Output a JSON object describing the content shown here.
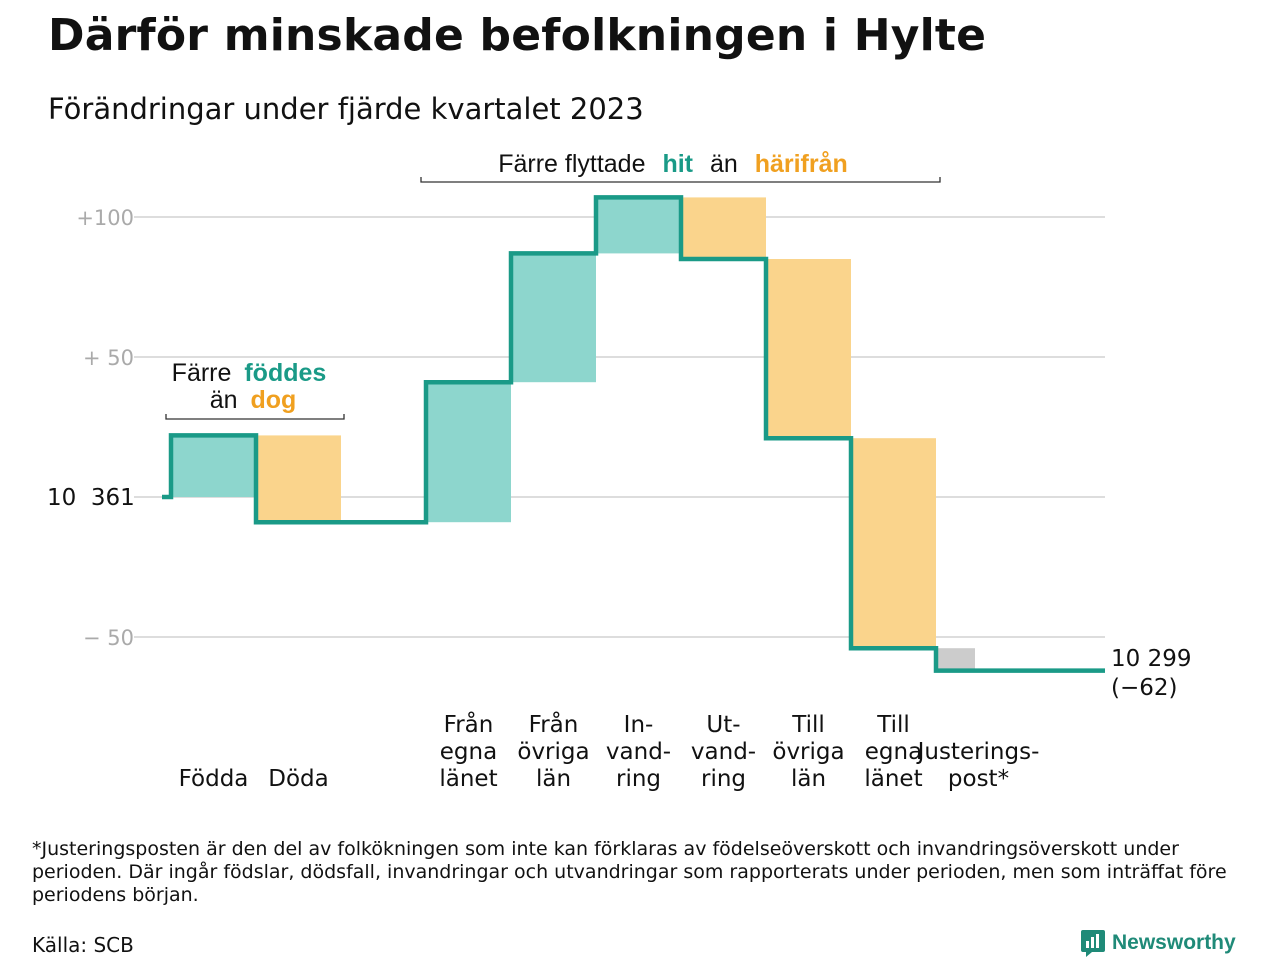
{
  "title": "Därför minskade befolkningen i Hylte",
  "subtitle": "Förändringar under fjärde kvartalet 2023",
  "colors": {
    "increase": "#8dd6cd",
    "decrease": "#fad48c",
    "adjustment": "#cccccc",
    "line": "#1a9a87",
    "teal_text": "#1a9a87",
    "orange_text": "#f0a020",
    "grid": "#dddddd",
    "tick_text": "#aaaaaa"
  },
  "annotations": {
    "births": {
      "part1": "Färre",
      "part2": "föddes",
      "part3": "än",
      "part4": "dog"
    },
    "moves": {
      "part1": "Färre flyttade",
      "part2": "hit",
      "part3": "än",
      "part4": "härifrån"
    }
  },
  "footnote": "*Justeringsposten är den del av folkökningen som inte kan förklaras av födelseöverskott och invandringsöverskott under perioden. Där ingår födslar, dödsfall, invandringar och utvandringar som rapporterats under perioden, men som inträffat före periodens början.",
  "source": "Källa: SCB",
  "brand": "Newsworthy",
  "brand_icon": "bar-chart-speech-bubble-icon",
  "chart_data": {
    "type": "waterfall",
    "start_value": 10361,
    "start_label": "10  361",
    "end_value": 10299,
    "end_label": "10 299",
    "end_change_label": "(−62)",
    "y_ticks": [
      {
        "value": 100,
        "label": "+100"
      },
      {
        "value": 50,
        "label": "+  50"
      },
      {
        "value": 0,
        "label": ""
      },
      {
        "value": -50,
        "label": "−  50"
      }
    ],
    "ylim": [
      -64,
      108
    ],
    "steps": [
      {
        "category": [
          "Födda"
        ],
        "change": 22,
        "kind": "increase"
      },
      {
        "category": [
          "Döda"
        ],
        "change": -31,
        "kind": "decrease"
      },
      {
        "category": [],
        "change": 0,
        "kind": "gap"
      },
      {
        "category": [
          "Från",
          "egna",
          "länet"
        ],
        "change": 50,
        "kind": "increase"
      },
      {
        "category": [
          "Från",
          "övriga",
          "län"
        ],
        "change": 46,
        "kind": "increase"
      },
      {
        "category": [
          "In-",
          "vand-",
          "ring"
        ],
        "change": 20,
        "kind": "increase"
      },
      {
        "category": [
          "Ut-",
          "vand-",
          "ring"
        ],
        "change": -22,
        "kind": "decrease"
      },
      {
        "category": [
          "Till",
          "övriga",
          "län"
        ],
        "change": -64,
        "kind": "decrease"
      },
      {
        "category": [
          "Till",
          "egna",
          "länet"
        ],
        "change": -75,
        "kind": "decrease"
      },
      {
        "category": [
          "Justerings-",
          "post*"
        ],
        "change": -8,
        "kind": "adjustment"
      }
    ]
  }
}
